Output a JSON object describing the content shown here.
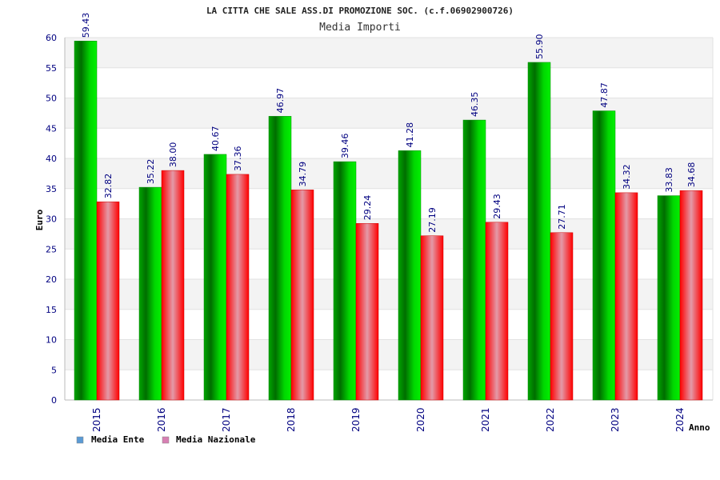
{
  "chart_data": {
    "type": "bar",
    "title": "LA CITTA CHE SALE ASS.DI PROMOZIONE SOC. (c.f.06902900726)",
    "subtitle": "Media Importi",
    "xlabel": "Anno",
    "ylabel": "Euro",
    "ylim": [
      0,
      60
    ],
    "yticks": [
      0,
      5,
      10,
      15,
      20,
      25,
      30,
      35,
      40,
      45,
      50,
      55,
      60
    ],
    "grid": true,
    "legend_position": "bottom-left",
    "categories": [
      "2015",
      "2016",
      "2017",
      "2018",
      "2019",
      "2020",
      "2021",
      "2022",
      "2023",
      "2024"
    ],
    "series": [
      {
        "name": "Media Ente",
        "values": [
          59.43,
          35.22,
          40.67,
          46.97,
          39.46,
          41.28,
          46.35,
          55.9,
          47.87,
          33.83
        ],
        "labels": [
          "59.43",
          "35.22",
          "40.67",
          "46.97",
          "39.46",
          "41.28",
          "46.35",
          "55.90",
          "47.87",
          "33.83"
        ],
        "color": "#00cc00",
        "legend_color": "#5b9bd5"
      },
      {
        "name": "Media Nazionale",
        "values": [
          32.82,
          38.0,
          37.36,
          34.79,
          29.24,
          27.19,
          29.43,
          27.71,
          34.32,
          34.68
        ],
        "labels": [
          "32.82",
          "38.00",
          "37.36",
          "34.79",
          "29.24",
          "27.19",
          "29.43",
          "27.71",
          "34.32",
          "34.68"
        ],
        "color": "#ee0000",
        "legend_color": "#d77fb3"
      }
    ]
  }
}
